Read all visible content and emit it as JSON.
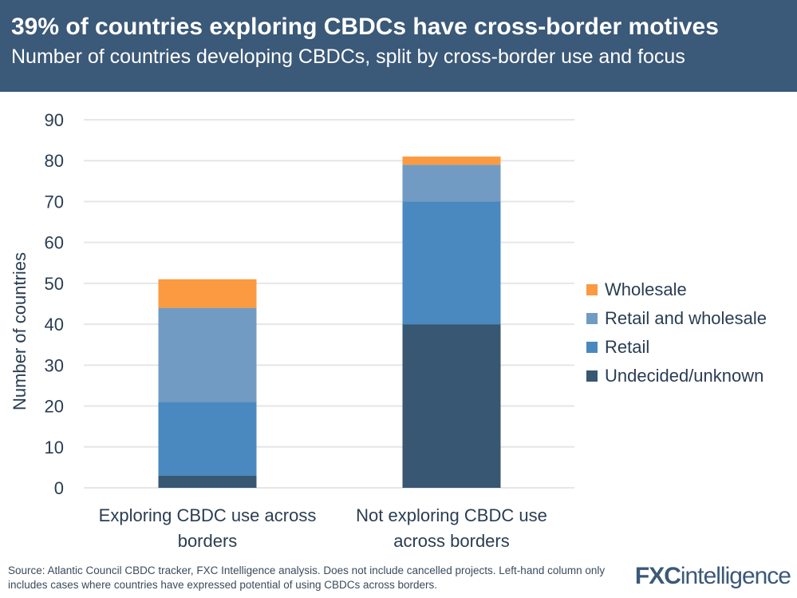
{
  "header": {
    "title": "39% of countries exploring CBDCs have cross-border motives",
    "subtitle": "Number of countries developing CBDCs, split by cross-border use and focus"
  },
  "chart_data": {
    "type": "bar",
    "stacked": true,
    "categories": [
      "Exploring CBDC use across borders",
      "Not exploring CBDC use across borders"
    ],
    "series": [
      {
        "name": "Undecided/unknown",
        "values": [
          3,
          40
        ],
        "color": "#375773"
      },
      {
        "name": "Retail",
        "values": [
          18,
          30
        ],
        "color": "#4a89bf"
      },
      {
        "name": "Retail and wholesale",
        "values": [
          23,
          9
        ],
        "color": "#719bc2"
      },
      {
        "name": "Wholesale",
        "values": [
          7,
          2
        ],
        "color": "#fb9a40"
      }
    ],
    "ylabel": "Number of countries",
    "ylim": [
      0,
      90
    ],
    "yticks": [
      0,
      10,
      20,
      30,
      40,
      50,
      60,
      70,
      80,
      90
    ],
    "grid": true,
    "legend": "right"
  },
  "footer": {
    "source": "Source: Atlantic Council CBDC tracker, FXC Intelligence analysis. Does not include cancelled projects. Left-hand column only includes cases where countries have expressed potential of using CBDCs across borders.",
    "logo": "FXCintelligence"
  }
}
